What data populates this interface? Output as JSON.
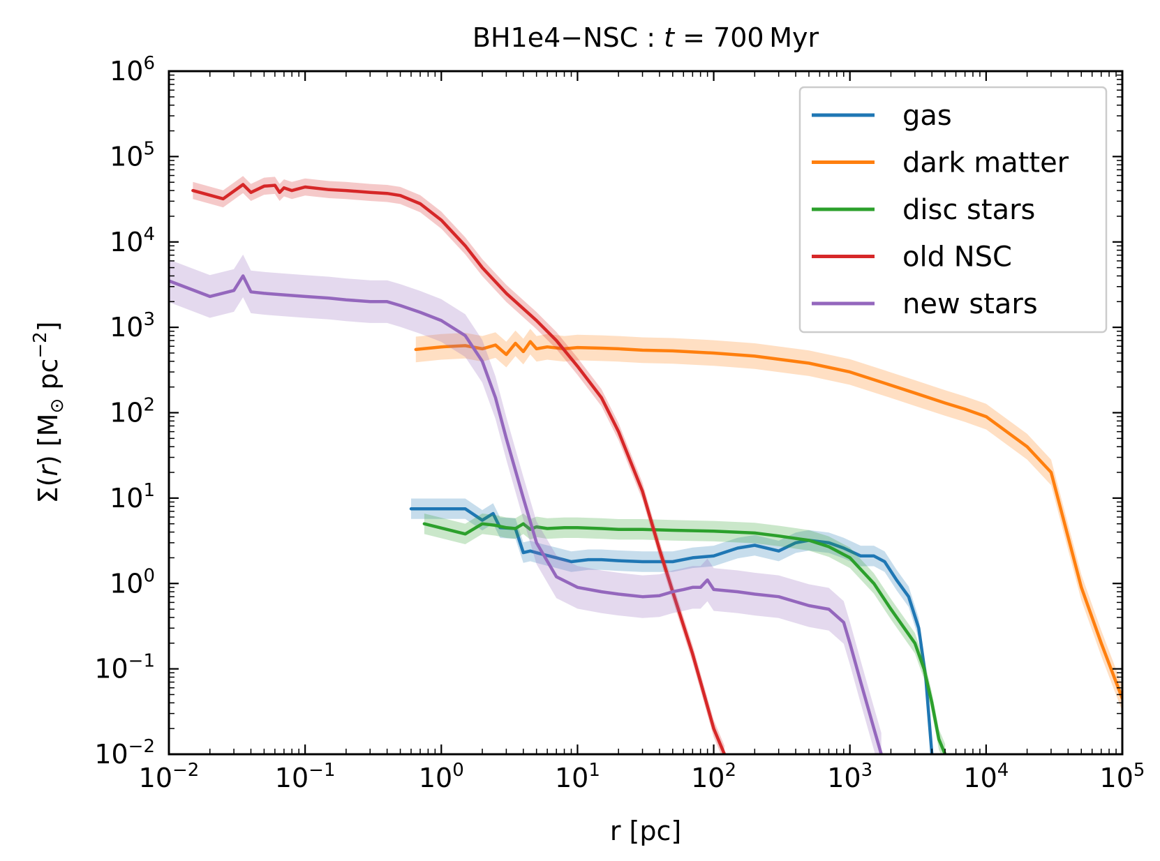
{
  "chart_data": {
    "type": "line",
    "title": {
      "prefix": "BH1e4−NSC : ",
      "italic": "t",
      "suffix": " = 700 Myr"
    },
    "xlabel": "r [pc]",
    "ylabel": {
      "prefix": "Σ(",
      "italic": "r",
      "mid": ") [M",
      "sub": "⊙",
      "after": " pc",
      "sup": "−2",
      "end": "]"
    },
    "xscale": "log",
    "yscale": "log",
    "xlim": [
      0.01,
      100000
    ],
    "ylim": [
      0.01,
      1000000
    ],
    "x_ticks": [
      {
        "value": 0.01,
        "base": "10",
        "exp": "−2"
      },
      {
        "value": 0.1,
        "base": "10",
        "exp": "−1"
      },
      {
        "value": 1,
        "base": "10",
        "exp": "0"
      },
      {
        "value": 10,
        "base": "10",
        "exp": "1"
      },
      {
        "value": 100,
        "base": "10",
        "exp": "2"
      },
      {
        "value": 1000,
        "base": "10",
        "exp": "3"
      },
      {
        "value": 10000,
        "base": "10",
        "exp": "4"
      },
      {
        "value": 100000,
        "base": "10",
        "exp": "5"
      }
    ],
    "y_ticks": [
      {
        "value": 0.01,
        "base": "10",
        "exp": "−2"
      },
      {
        "value": 0.1,
        "base": "10",
        "exp": "−1"
      },
      {
        "value": 1,
        "base": "10",
        "exp": "0"
      },
      {
        "value": 10,
        "base": "10",
        "exp": "1"
      },
      {
        "value": 100,
        "base": "10",
        "exp": "2"
      },
      {
        "value": 1000,
        "base": "10",
        "exp": "3"
      },
      {
        "value": 10000,
        "base": "10",
        "exp": "4"
      },
      {
        "value": 100000,
        "base": "10",
        "exp": "5"
      },
      {
        "value": 1000000,
        "base": "10",
        "exp": "6"
      }
    ],
    "legend_position": "top-right",
    "grid": false,
    "series": [
      {
        "name": "gas",
        "color": "#1f77b4",
        "band": 0.12,
        "x": [
          0.6,
          1.5,
          2.0,
          2.4,
          2.7,
          3.5,
          4.0,
          4.5,
          5.5,
          7,
          9,
          12,
          15,
          20,
          30,
          50,
          70,
          100,
          150,
          200,
          300,
          400,
          500,
          700,
          900,
          1200,
          1500,
          1800,
          2200,
          2700,
          3200,
          3600,
          4000
        ],
        "y": [
          7.5,
          7.5,
          5.5,
          6.6,
          4.5,
          4.4,
          2.3,
          2.4,
          2.2,
          2.0,
          1.8,
          1.9,
          1.9,
          1.85,
          1.8,
          1.8,
          2.0,
          2.1,
          2.6,
          2.8,
          2.4,
          3.0,
          3.2,
          3.0,
          2.6,
          2.1,
          2.1,
          1.8,
          1.1,
          0.7,
          0.3,
          0.08,
          0.01
        ]
      },
      {
        "name": "dark matter",
        "color": "#ff7f0e",
        "band": 0.15,
        "x": [
          0.65,
          1,
          1.5,
          2,
          2.5,
          3,
          3.5,
          4,
          4.5,
          5,
          6,
          8,
          10,
          15,
          20,
          30,
          50,
          100,
          200,
          500,
          1000,
          2000,
          3000,
          5000,
          7000,
          10000,
          20000,
          30000,
          50000,
          70000,
          100000
        ],
        "y": [
          550,
          590,
          610,
          560,
          620,
          480,
          650,
          520,
          680,
          560,
          590,
          560,
          580,
          570,
          560,
          540,
          530,
          500,
          460,
          380,
          300,
          210,
          170,
          130,
          110,
          90,
          40,
          20,
          0.9,
          0.2,
          0.045
        ]
      },
      {
        "name": "disc stars",
        "color": "#2ca02c",
        "band": 0.12,
        "x": [
          0.75,
          1.5,
          2,
          2.5,
          3,
          3.5,
          4,
          4.5,
          5,
          6,
          8,
          10,
          15,
          20,
          30,
          50,
          100,
          200,
          300,
          500,
          700,
          1000,
          1500,
          2000,
          3000,
          3500,
          4000,
          4500,
          5000
        ],
        "y": [
          5.0,
          3.8,
          5.0,
          4.8,
          4.5,
          4.4,
          5.0,
          4.3,
          4.6,
          4.4,
          4.5,
          4.5,
          4.4,
          4.3,
          4.3,
          4.2,
          4.1,
          3.9,
          3.6,
          3.2,
          2.7,
          2.0,
          1.0,
          0.5,
          0.2,
          0.1,
          0.04,
          0.015,
          0.01
        ]
      },
      {
        "name": "old NSC",
        "color": "#d62728",
        "band": 0.1,
        "x": [
          0.015,
          0.025,
          0.035,
          0.04,
          0.05,
          0.06,
          0.065,
          0.07,
          0.08,
          0.1,
          0.15,
          0.2,
          0.3,
          0.4,
          0.5,
          0.7,
          1,
          1.5,
          2,
          3,
          5,
          7,
          10,
          15,
          20,
          30,
          40,
          50,
          70,
          100,
          120
        ],
        "y": [
          40000,
          32000,
          47000,
          38000,
          45000,
          46000,
          38000,
          43000,
          40000,
          44000,
          41000,
          40000,
          38000,
          37000,
          35000,
          28000,
          18000,
          9000,
          5000,
          2500,
          1200,
          700,
          350,
          150,
          60,
          12,
          2.5,
          0.8,
          0.15,
          0.02,
          0.01
        ]
      },
      {
        "name": "new stars",
        "color": "#9467bd",
        "band": 0.25,
        "x": [
          0.01,
          0.02,
          0.03,
          0.035,
          0.04,
          0.05,
          0.07,
          0.1,
          0.15,
          0.2,
          0.3,
          0.4,
          0.5,
          0.7,
          1,
          1.5,
          2,
          2.5,
          3,
          4,
          5,
          7,
          10,
          15,
          20,
          30,
          40,
          50,
          60,
          70,
          80,
          90,
          100,
          150,
          200,
          300,
          500,
          700,
          900,
          1000,
          1200,
          1500,
          1700
        ],
        "y": [
          3500,
          2300,
          2700,
          4000,
          2600,
          2500,
          2400,
          2300,
          2200,
          2100,
          2000,
          2000,
          1800,
          1500,
          1200,
          800,
          400,
          150,
          50,
          10,
          3,
          1.2,
          0.9,
          0.8,
          0.75,
          0.7,
          0.72,
          0.8,
          0.85,
          0.9,
          0.9,
          1.1,
          0.85,
          0.8,
          0.75,
          0.7,
          0.55,
          0.5,
          0.35,
          0.2,
          0.07,
          0.02,
          0.01
        ]
      }
    ]
  }
}
